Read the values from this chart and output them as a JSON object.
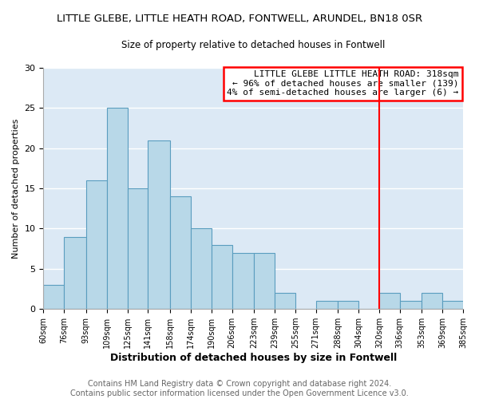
{
  "title": "LITTLE GLEBE, LITTLE HEATH ROAD, FONTWELL, ARUNDEL, BN18 0SR",
  "subtitle": "Size of property relative to detached houses in Fontwell",
  "xlabel": "Distribution of detached houses by size in Fontwell",
  "ylabel": "Number of detached properties",
  "bar_edges": [
    60,
    76,
    93,
    109,
    125,
    141,
    158,
    174,
    190,
    206,
    223,
    239,
    255,
    271,
    288,
    304,
    320,
    336,
    353,
    369,
    385
  ],
  "bar_heights": [
    3,
    9,
    16,
    25,
    15,
    21,
    14,
    10,
    8,
    7,
    7,
    2,
    0,
    1,
    1,
    0,
    2,
    1,
    2,
    1
  ],
  "bar_color": "#b8d8e8",
  "bar_edge_color": "#5a9dbf",
  "vline_x": 320,
  "vline_color": "red",
  "ylim": [
    0,
    30
  ],
  "yticks": [
    0,
    5,
    10,
    15,
    20,
    25,
    30
  ],
  "annotation_line1": "LITTLE GLEBE LITTLE HEATH ROAD: 318sqm",
  "annotation_line2": "← 96% of detached houses are smaller (139)",
  "annotation_line3": "4% of semi-detached houses are larger (6) →",
  "tick_labels": [
    "60sqm",
    "76sqm",
    "93sqm",
    "109sqm",
    "125sqm",
    "141sqm",
    "158sqm",
    "174sqm",
    "190sqm",
    "206sqm",
    "223sqm",
    "239sqm",
    "255sqm",
    "271sqm",
    "288sqm",
    "304sqm",
    "320sqm",
    "336sqm",
    "353sqm",
    "369sqm",
    "385sqm"
  ],
  "background_color": "#ffffff",
  "plot_bg_color": "#dce9f5",
  "title_fontsize": 9.5,
  "subtitle_fontsize": 8.5,
  "xlabel_fontsize": 9,
  "ylabel_fontsize": 8,
  "tick_fontsize": 7,
  "annotation_fontsize": 8,
  "footer_fontsize": 7,
  "footer_line1": "Contains HM Land Registry data © Crown copyright and database right 2024.",
  "footer_line2": "Contains public sector information licensed under the Open Government Licence v3.0."
}
